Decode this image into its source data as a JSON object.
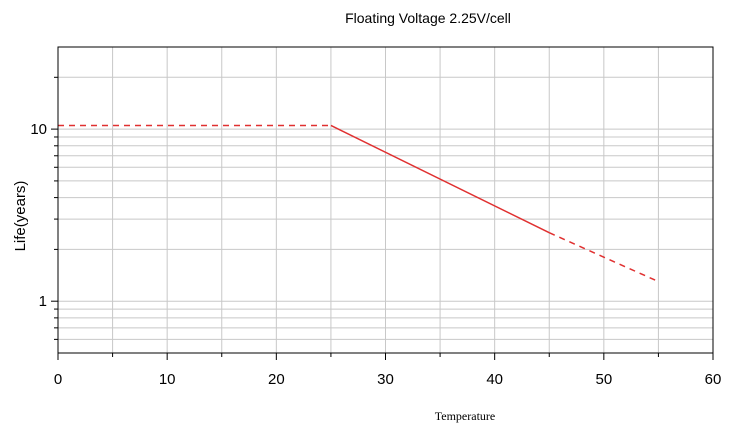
{
  "chart_data": {
    "type": "line",
    "title": "Floating Voltage 2.25V/cell",
    "xlabel": "Temperature",
    "ylabel": "Life(years)",
    "xlim": [
      0,
      60
    ],
    "ylim": [
      0.5,
      30
    ],
    "y_scale": "log",
    "grid": true,
    "x_ticks": [
      0,
      10,
      20,
      30,
      40,
      50,
      60
    ],
    "y_tick_labels": [
      {
        "value": 1,
        "label": "1"
      },
      {
        "value": 10,
        "label": "10"
      }
    ],
    "line_color": "#e03030",
    "series": [
      {
        "segments": [
          {
            "style": "dashed",
            "x": [
              0,
              25
            ],
            "y": [
              10.5,
              10.5
            ]
          },
          {
            "style": "solid",
            "x": [
              25,
              45
            ],
            "y": [
              10.5,
              2.5
            ]
          },
          {
            "style": "dashed",
            "x": [
              45,
              55
            ],
            "y": [
              2.5,
              1.3
            ]
          }
        ]
      }
    ]
  }
}
